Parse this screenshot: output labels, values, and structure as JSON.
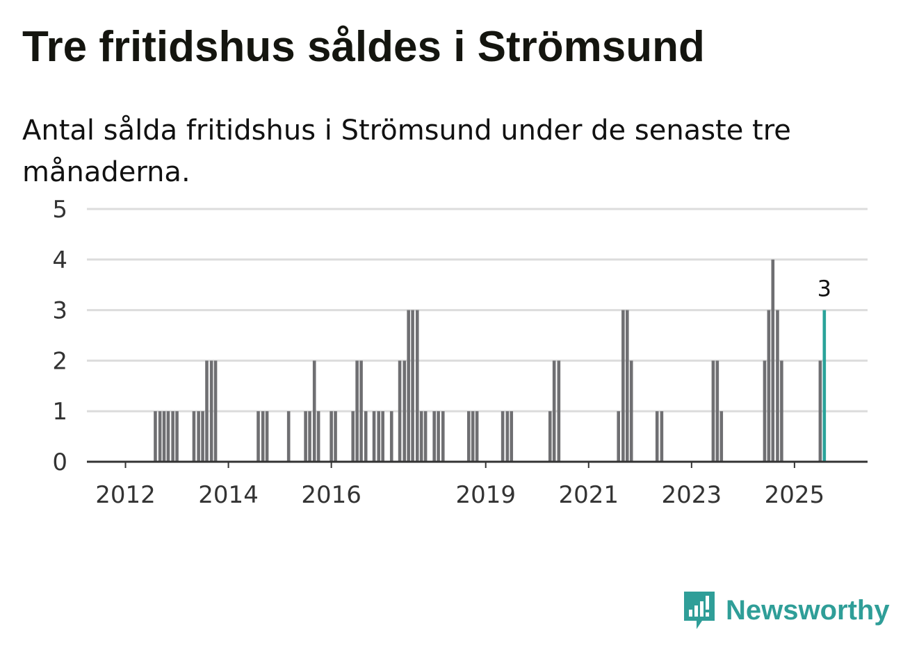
{
  "title": "Tre fritidshus såldes i Strömsund",
  "subtitle": "Antal sålda fritidshus i Strömsund under de senaste tre månaderna.",
  "brand": {
    "name": "Newsworthy"
  },
  "colors": {
    "bar": "#6f6f72",
    "highlight": "#2aa39a",
    "grid": "#dcdcdc",
    "axis": "#333333",
    "text": "#111111",
    "brand": "#2f9e98"
  },
  "chart_data": {
    "type": "bar",
    "title": "Tre fritidshus såldes i Strömsund",
    "subtitle": "Antal sålda fritidshus i Strömsund under de senaste tre månaderna.",
    "xlabel": "",
    "ylabel": "",
    "ylim": [
      0,
      5
    ],
    "yticks": [
      "0",
      "1",
      "2",
      "3",
      "4",
      "5"
    ],
    "xlim": [
      2011.25,
      2026.42
    ],
    "xticks": [
      {
        "label": "2012",
        "x": 2012.0
      },
      {
        "label": "2014",
        "x": 2014.0
      },
      {
        "label": "2016",
        "x": 2016.0
      },
      {
        "label": "2019",
        "x": 2019.0
      },
      {
        "label": "2021",
        "x": 2021.0
      },
      {
        "label": "2023",
        "x": 2023.0
      },
      {
        "label": "2025",
        "x": 2025.0
      }
    ],
    "grid": true,
    "x": [
      2012.58,
      2012.67,
      2012.75,
      2012.83,
      2012.92,
      2013.0,
      2013.33,
      2013.42,
      2013.5,
      2013.58,
      2013.67,
      2013.75,
      2014.58,
      2014.67,
      2014.75,
      2015.17,
      2015.5,
      2015.58,
      2015.67,
      2015.75,
      2016.0,
      2016.08,
      2016.42,
      2016.5,
      2016.58,
      2016.67,
      2016.83,
      2016.92,
      2017.0,
      2017.17,
      2017.33,
      2017.42,
      2017.5,
      2017.58,
      2017.67,
      2017.75,
      2017.83,
      2018.0,
      2018.08,
      2018.17,
      2018.67,
      2018.75,
      2018.83,
      2019.33,
      2019.42,
      2019.5,
      2020.25,
      2020.33,
      2020.42,
      2021.58,
      2021.67,
      2021.75,
      2021.83,
      2022.33,
      2022.42,
      2023.42,
      2023.5,
      2023.58,
      2024.42,
      2024.5,
      2024.58,
      2024.67,
      2024.75,
      2025.5,
      2025.58
    ],
    "values": [
      1,
      1,
      1,
      1,
      1,
      1,
      1,
      1,
      1,
      2,
      2,
      2,
      1,
      1,
      1,
      1,
      1,
      1,
      2,
      1,
      1,
      1,
      1,
      2,
      2,
      1,
      1,
      1,
      1,
      1,
      2,
      2,
      3,
      3,
      3,
      1,
      1,
      1,
      1,
      1,
      1,
      1,
      1,
      1,
      1,
      1,
      1,
      2,
      2,
      1,
      3,
      3,
      2,
      1,
      1,
      2,
      2,
      1,
      2,
      3,
      4,
      3,
      2,
      2,
      3
    ],
    "highlight_last": true,
    "annotations": [
      {
        "x": 2025.58,
        "label": "3"
      }
    ]
  }
}
